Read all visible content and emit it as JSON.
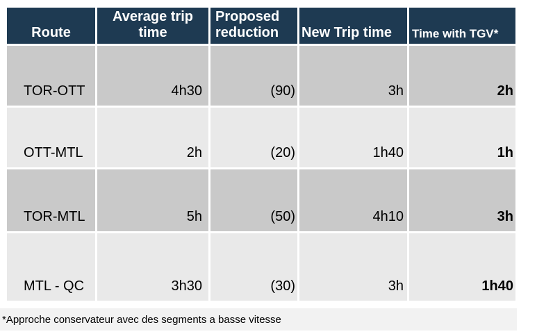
{
  "table": {
    "columns": [
      {
        "label": "Route"
      },
      {
        "label": "Average trip time"
      },
      {
        "label": "Proposed reduction"
      },
      {
        "label": "New Trip time"
      },
      {
        "label": "Time with TGV*"
      }
    ],
    "rows": [
      {
        "route": "TOR-OTT",
        "avg": "4h30",
        "reduction": "(90)",
        "new_time": "3h",
        "tgv": "2h"
      },
      {
        "route": "OTT-MTL",
        "avg": "2h",
        "reduction": "(20)",
        "new_time": "1h40",
        "tgv": "1h"
      },
      {
        "route": "TOR-MTL",
        "avg": "5h",
        "reduction": "(50)",
        "new_time": "4h10",
        "tgv": "3h"
      },
      {
        "route": "MTL - QC",
        "avg": "3h30",
        "reduction": "(30)",
        "new_time": "3h",
        "tgv": "1h40"
      }
    ],
    "colors": {
      "header_bg": "#1e3a52",
      "header_text": "#ffffff",
      "row_dark": "#c9c9c9",
      "row_light": "#e9e9e9",
      "grid_lines": "#ffffff",
      "body_text": "#000000"
    }
  },
  "footnote": {
    "text": "*Approche conservateur avec des segments a basse vitesse",
    "background": "#f2f2f2"
  }
}
